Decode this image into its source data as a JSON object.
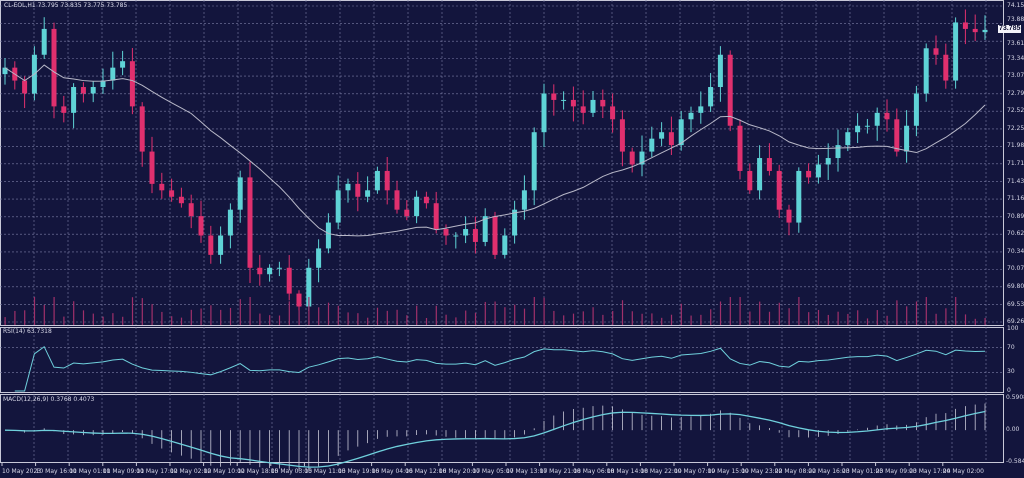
{
  "header": {
    "symbol": "CL-EOL,H1",
    "ohlc": "73.795 73.835 73.775 73.785"
  },
  "rsi_label": "RSI(14) 63.7318",
  "macd_label": "MACD(12,26,9) 0.3768 0.4073",
  "current_price": "73.785",
  "colors": {
    "background": "#13153d",
    "bull": "#5fd3d6",
    "bear": "#e0306e",
    "grid": "#7c7ea6",
    "ma": "#b8b8c8",
    "indicator": "#6fd0dc"
  },
  "chart_data": {
    "type": "candlestick",
    "ylim": [
      69.26,
      74.155
    ],
    "price_ticks": [
      "74.155",
      "73.885",
      "73.610",
      "73.340",
      "73.070",
      "72.795",
      "72.525",
      "72.250",
      "71.980",
      "71.710",
      "71.435",
      "71.165",
      "70.890",
      "70.620",
      "70.345",
      "70.075",
      "69.805",
      "69.530",
      "69.260"
    ],
    "rsi_ticks": [
      "100",
      "70",
      "30",
      "0"
    ],
    "macd_ticks": [
      "0.5908",
      "0.00",
      "-0.5845"
    ],
    "time_labels": [
      "10 May 2023",
      "10 May 16:00",
      "11 May 01:00",
      "11 May 09:00",
      "11 May 17:00",
      "12 May 02:00",
      "12 May 10:00",
      "12 May 18:00",
      "15 May 03:00",
      "15 May 11:00",
      "15 May 19:00",
      "16 May 04:00",
      "16 May 12:00",
      "16 May 20:00",
      "17 May 05:00",
      "17 May 13:00",
      "17 May 21:00",
      "18 May 06:00",
      "18 May 14:00",
      "18 May 22:00",
      "19 May 07:00",
      "19 May 15:00",
      "19 May 23:00",
      "22 May 08:00",
      "22 May 16:00",
      "23 May 01:00",
      "23 May 09:00",
      "23 May 17:00",
      "24 May 02:00"
    ],
    "closes": [
      73.2,
      73.0,
      72.8,
      73.4,
      73.8,
      72.6,
      72.5,
      72.9,
      72.8,
      72.9,
      73.0,
      73.2,
      73.3,
      72.6,
      71.9,
      71.4,
      71.3,
      71.2,
      71.1,
      70.9,
      70.6,
      70.3,
      70.6,
      71.0,
      71.5,
      70.1,
      70.0,
      70.1,
      70.1,
      69.7,
      69.5,
      70.1,
      70.4,
      70.8,
      71.3,
      71.4,
      71.2,
      71.3,
      71.6,
      71.3,
      71.0,
      70.9,
      71.2,
      71.1,
      70.7,
      70.6,
      70.6,
      70.7,
      70.5,
      70.9,
      70.3,
      70.6,
      71.0,
      71.3,
      72.2,
      72.8,
      72.7,
      72.7,
      72.6,
      72.5,
      72.7,
      72.6,
      72.4,
      71.9,
      71.7,
      71.9,
      72.1,
      72.2,
      72.0,
      72.4,
      72.5,
      72.6,
      72.9,
      73.4,
      72.3,
      71.6,
      71.3,
      71.8,
      71.6,
      71.0,
      70.8,
      71.6,
      71.5,
      71.7,
      71.8,
      72.0,
      72.2,
      72.3,
      72.3,
      72.5,
      72.4,
      71.9,
      72.3,
      72.8,
      73.5,
      73.4,
      73.0,
      73.9,
      73.8,
      73.75,
      73.785
    ],
    "ma_period": 20,
    "rsi_period": 14,
    "macd_params": [
      12,
      26,
      9
    ]
  }
}
